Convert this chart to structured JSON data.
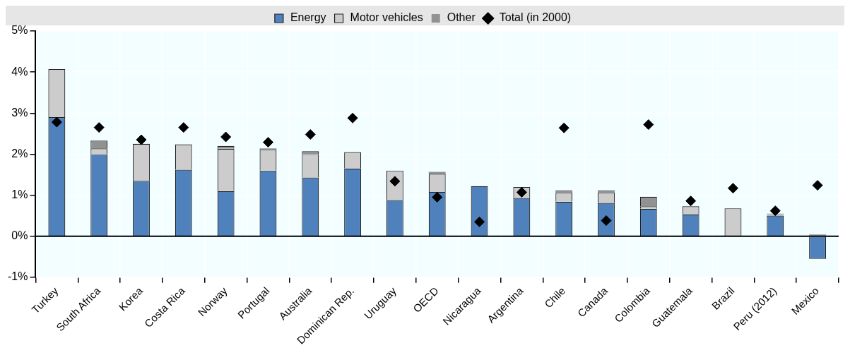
{
  "chart_data": {
    "type": "bar",
    "stacked": true,
    "categories": [
      "Turkey",
      "South Africa",
      "Korea",
      "Costa Rica",
      "Norway",
      "Portugal",
      "Australia",
      "Dominican Rep.",
      "Uruguay",
      "OECD",
      "Nicaragua",
      "Argentina",
      "Chile",
      "Canada",
      "Colombia",
      "Guatemala",
      "Brazil",
      "Peru (2012)",
      "Mexico"
    ],
    "series": [
      {
        "name": "Energy",
        "color": "#4f81bd",
        "values": [
          2.9,
          2.0,
          1.35,
          1.62,
          1.1,
          1.6,
          1.43,
          1.65,
          0.88,
          1.08,
          1.22,
          0.93,
          0.84,
          0.81,
          0.67,
          0.53,
          0,
          0.5,
          -0.55
        ]
      },
      {
        "name": "Motor vehicles",
        "color": "#cccccc",
        "values": [
          1.17,
          0.14,
          0.9,
          0.62,
          1.03,
          0.52,
          0.57,
          0.4,
          0.72,
          0.44,
          0,
          0.27,
          0.23,
          0.26,
          0.06,
          0.2,
          0.68,
          0.03,
          0
        ]
      },
      {
        "name": "Other",
        "color": "#929292",
        "values": [
          0,
          0.19,
          0,
          null,
          0.07,
          0.02,
          0.07,
          0,
          0,
          0.05,
          0,
          0,
          0.05,
          0.05,
          0.23,
          0,
          0,
          0.02,
          0.04
        ]
      },
      {
        "name": "Total (in 2000)",
        "type": "scatter",
        "marker": "diamond",
        "color": "#000000",
        "x": [
          "Turkey",
          "South Africa",
          "Korea",
          "Costa Rica",
          "Norway",
          "Portugal",
          "Australia",
          "Dominican Rep.",
          "Uruguay",
          "OECD",
          "Nicaragua",
          "Argentina",
          "Chile",
          "Canada",
          "Colombia",
          "Guatemala",
          "Brazil",
          "Peru (2012)",
          "Mexico"
        ],
        "values": [
          2.78,
          2.65,
          2.35,
          2.65,
          2.42,
          2.29,
          2.48,
          2.88,
          1.34,
          0.95,
          0.35,
          1.07,
          2.64,
          0.38,
          2.72,
          0.86,
          1.17,
          0.62,
          1.24
        ]
      }
    ],
    "ylim": [
      -1,
      5
    ],
    "yticks": [
      {
        "value": -1,
        "label": "-1%"
      },
      {
        "value": 0,
        "label": "0%"
      },
      {
        "value": 1,
        "label": "1%"
      },
      {
        "value": 2,
        "label": "2%"
      },
      {
        "value": 3,
        "label": "3%"
      },
      {
        "value": 4,
        "label": "4%"
      },
      {
        "value": 5,
        "label": "5%"
      }
    ],
    "grid": true,
    "legend": "top"
  }
}
